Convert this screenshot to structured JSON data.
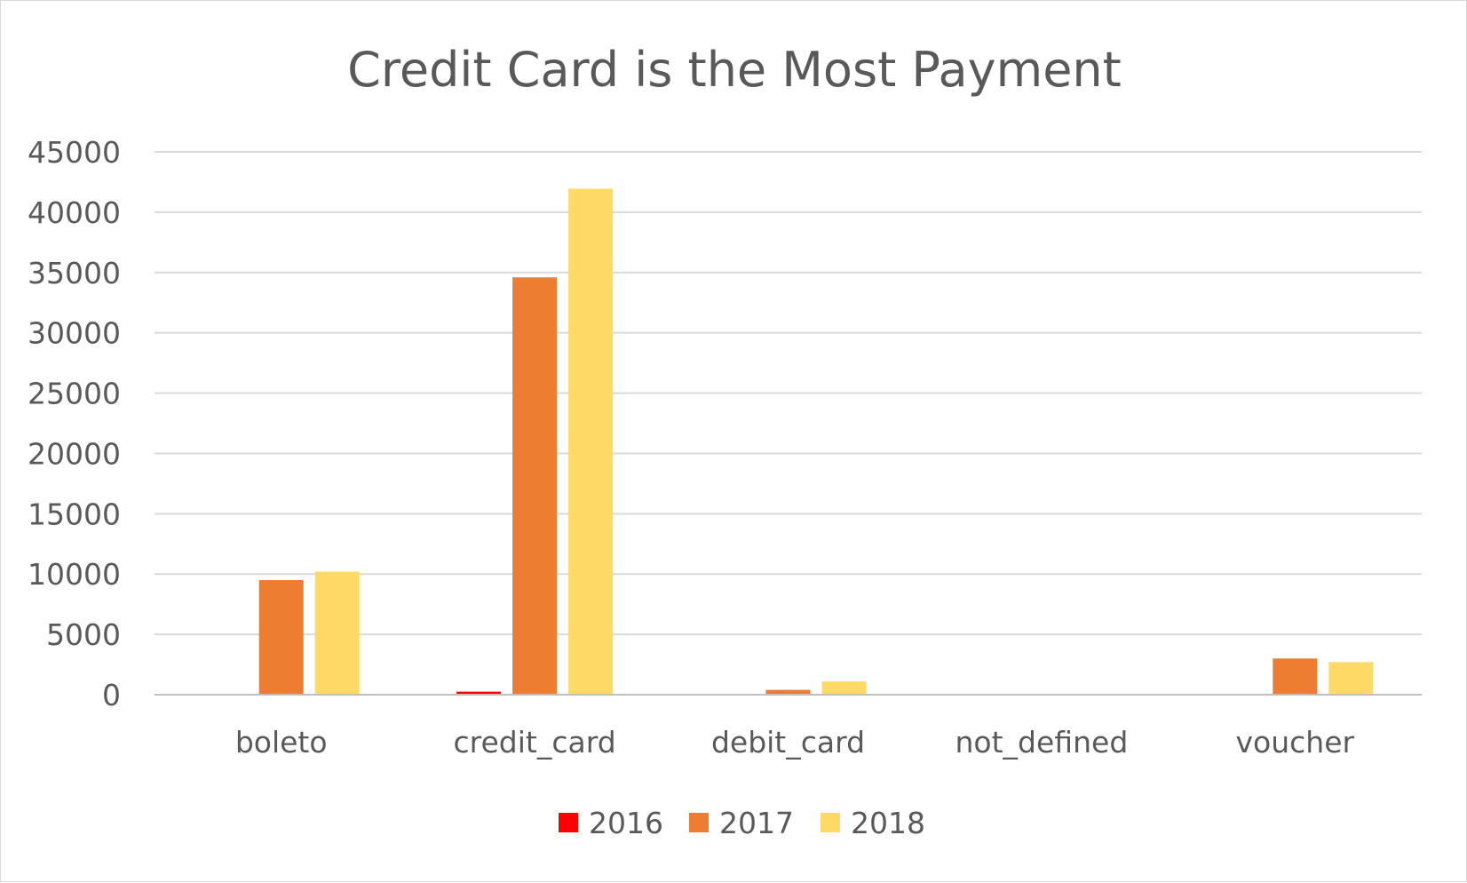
{
  "chart_data": {
    "type": "bar",
    "title": "Credit Card is the Most Payment",
    "xlabel": "",
    "ylabel": "",
    "categories": [
      "boleto",
      "credit_card",
      "debit_card",
      "not_defined",
      "voucher"
    ],
    "series": [
      {
        "name": "2016",
        "color": "#ff0000",
        "values": [
          0,
          250,
          0,
          0,
          0
        ]
      },
      {
        "name": "2017",
        "color": "#ed7d31",
        "values": [
          9500,
          34600,
          400,
          0,
          3000
        ]
      },
      {
        "name": "2018",
        "color": "#ffd966",
        "values": [
          10200,
          41950,
          1100,
          0,
          2700
        ]
      }
    ],
    "ylim": [
      0,
      45000
    ],
    "yticks": [
      "0",
      "5000",
      "10000",
      "15000",
      "20000",
      "25000",
      "30000",
      "35000",
      "40000",
      "45000"
    ],
    "grid": true,
    "legend_position": "bottom"
  }
}
